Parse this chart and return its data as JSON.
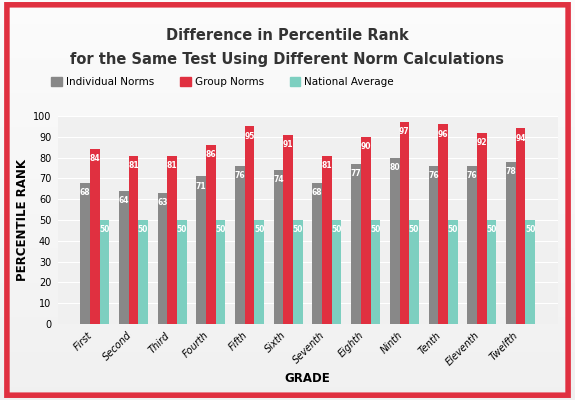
{
  "title_line1": "Difference in Percentile Rank",
  "title_line2": "for the Same Test Using Different Norm Calculations",
  "xlabel": "GRADE",
  "ylabel": "PERCENTILE RANK",
  "grades": [
    "First",
    "Second",
    "Third",
    "Fourth",
    "Fifth",
    "Sixth",
    "Seventh",
    "Eighth",
    "Ninth",
    "Tenth",
    "Eleventh",
    "Twelfth"
  ],
  "individual_norms": [
    68,
    64,
    63,
    71,
    76,
    74,
    68,
    77,
    80,
    76,
    76,
    78
  ],
  "group_norms": [
    84,
    81,
    81,
    86,
    95,
    91,
    81,
    90,
    97,
    96,
    92,
    94
  ],
  "national_average": [
    50,
    50,
    50,
    50,
    50,
    50,
    50,
    50,
    50,
    50,
    50,
    50
  ],
  "color_individual": "#888888",
  "color_group": "#E03040",
  "color_national": "#7DCFC0",
  "color_border": "#E03040",
  "ylim": [
    0,
    100
  ],
  "yticks": [
    0,
    10,
    20,
    30,
    40,
    50,
    60,
    70,
    80,
    90,
    100
  ],
  "bar_width": 0.25,
  "legend_labels": [
    "Individual Norms",
    "Group Norms",
    "National Average"
  ],
  "title_fontsize": 10.5,
  "axis_label_fontsize": 8.5,
  "tick_fontsize": 7,
  "bar_label_fontsize": 5.5,
  "legend_fontsize": 7.5
}
